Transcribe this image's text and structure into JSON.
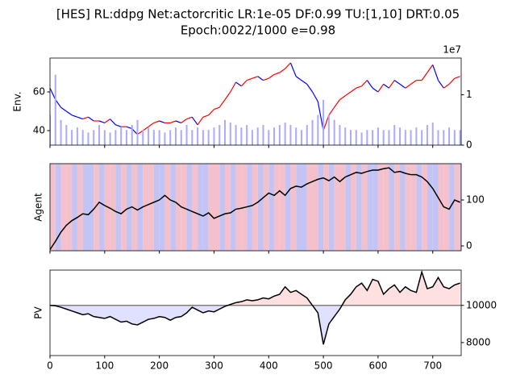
{
  "title": [
    "[HES] RL:ddpg Net:actorcritic LR:1e-05 DF:0.99 TU:[1,10] DRT:0.05",
    "Epoch:0022/1000 e=0.98"
  ],
  "chart_data": [
    {
      "type": "line",
      "ylabel": "Env.",
      "ytick_side": "left",
      "show_xticklabels": false,
      "x": [
        0,
        10,
        20,
        30,
        40,
        50,
        60,
        70,
        80,
        90,
        100,
        110,
        120,
        130,
        140,
        150,
        160,
        170,
        180,
        190,
        200,
        210,
        220,
        230,
        240,
        250,
        260,
        270,
        280,
        290,
        300,
        310,
        320,
        330,
        340,
        350,
        360,
        370,
        380,
        390,
        400,
        410,
        420,
        430,
        440,
        450,
        460,
        470,
        480,
        490,
        500,
        510,
        520,
        530,
        540,
        550,
        560,
        570,
        580,
        590,
        600,
        610,
        620,
        630,
        640,
        650,
        660,
        670,
        680,
        690,
        700,
        710,
        720,
        730,
        740,
        750
      ],
      "xlim": [
        0,
        752
      ],
      "xticks": [
        0,
        100,
        200,
        300,
        400,
        500,
        600,
        700
      ],
      "ylim": [
        32.5,
        77.5
      ],
      "yticks": [
        40,
        60
      ],
      "y2lim": [
        0,
        1.73
      ],
      "y2ticks": [
        0,
        1
      ],
      "y2_offset_label": "1e7",
      "series": [
        {
          "up_color": "#ff0000",
          "down_color": "#0000ff",
          "values": [
            62,
            56,
            52,
            50,
            48,
            47,
            46,
            47,
            45,
            45,
            44,
            46,
            43,
            42,
            42,
            41,
            38,
            40,
            42,
            44,
            45,
            44,
            44,
            45,
            44,
            46,
            47,
            43,
            47,
            48,
            51,
            52,
            56,
            60,
            65,
            63,
            66,
            67,
            68,
            66,
            67,
            69,
            70,
            72,
            75,
            68,
            66,
            64,
            60,
            55,
            40,
            48,
            52,
            56,
            58,
            60,
            62,
            63,
            66,
            62,
            60,
            64,
            62,
            66,
            64,
            62,
            64,
            66,
            66,
            70,
            74,
            66,
            62,
            64,
            67,
            68
          ]
        },
        {
          "type": "bar",
          "axis": "y2",
          "color": "#aaaaff",
          "values": [
            0.6,
            1.4,
            0.5,
            0.4,
            0.3,
            0.35,
            0.3,
            0.25,
            0.3,
            0.4,
            0.3,
            0.25,
            0.3,
            0.35,
            0.3,
            0.4,
            0.5,
            0.3,
            0.35,
            0.3,
            0.3,
            0.25,
            0.3,
            0.35,
            0.3,
            0.4,
            0.3,
            0.35,
            0.3,
            0.3,
            0.35,
            0.4,
            0.5,
            0.45,
            0.4,
            0.35,
            0.4,
            0.3,
            0.35,
            0.4,
            0.3,
            0.35,
            0.4,
            0.45,
            0.4,
            0.35,
            0.3,
            0.4,
            0.5,
            0.6,
            0.9,
            0.6,
            0.5,
            0.4,
            0.35,
            0.3,
            0.3,
            0.25,
            0.3,
            0.3,
            0.35,
            0.3,
            0.3,
            0.4,
            0.35,
            0.3,
            0.3,
            0.35,
            0.3,
            0.4,
            0.45,
            0.3,
            0.3,
            0.35,
            0.3,
            0.3
          ]
        }
      ]
    },
    {
      "type": "line",
      "ylabel": "Agent",
      "ytick_side": "right",
      "show_xticklabels": false,
      "x": [
        0,
        10,
        20,
        30,
        40,
        50,
        60,
        70,
        80,
        90,
        100,
        110,
        120,
        130,
        140,
        150,
        160,
        170,
        180,
        190,
        200,
        210,
        220,
        230,
        240,
        250,
        260,
        270,
        280,
        290,
        300,
        310,
        320,
        330,
        340,
        350,
        360,
        370,
        380,
        390,
        400,
        410,
        420,
        430,
        440,
        450,
        460,
        470,
        480,
        490,
        500,
        510,
        520,
        530,
        540,
        550,
        560,
        570,
        580,
        590,
        600,
        610,
        620,
        630,
        640,
        650,
        660,
        670,
        680,
        690,
        700,
        710,
        720,
        730,
        740,
        750
      ],
      "xlim": [
        0,
        752
      ],
      "xticks": [
        0,
        100,
        200,
        300,
        400,
        500,
        600,
        700
      ],
      "ylim": [
        -10.5,
        179
      ],
      "yticks": [
        0,
        100
      ],
      "action_colors": [
        "#c4c4f4",
        "#f4c0cc"
      ],
      "actions": [
        1,
        0,
        1,
        1,
        0,
        1,
        0,
        0,
        1,
        0,
        1,
        1,
        0,
        1,
        0,
        1,
        0,
        1,
        1,
        0,
        0,
        1,
        0,
        1,
        1,
        0,
        1,
        0,
        0,
        1,
        1,
        0,
        1,
        0,
        1,
        1,
        0,
        1,
        0,
        1,
        0,
        1,
        1,
        0,
        1,
        0,
        0,
        1,
        1,
        0,
        1,
        0,
        1,
        1,
        0,
        1,
        0,
        1,
        0,
        0,
        1,
        1,
        0,
        1,
        0,
        1,
        1,
        0,
        1,
        0,
        0,
        1,
        1,
        0,
        1,
        0
      ],
      "series": [
        {
          "color": "#000000",
          "values": [
            -8,
            10,
            30,
            45,
            55,
            62,
            70,
            68,
            80,
            95,
            88,
            82,
            75,
            70,
            80,
            85,
            78,
            85,
            90,
            95,
            100,
            110,
            100,
            95,
            85,
            80,
            75,
            70,
            65,
            72,
            60,
            65,
            70,
            72,
            80,
            82,
            85,
            88,
            95,
            105,
            115,
            110,
            120,
            110,
            125,
            130,
            128,
            135,
            140,
            145,
            148,
            142,
            150,
            140,
            150,
            155,
            160,
            158,
            162,
            165,
            165,
            168,
            170,
            160,
            162,
            158,
            155,
            155,
            150,
            140,
            125,
            105,
            85,
            80,
            100,
            95
          ]
        }
      ]
    },
    {
      "type": "line",
      "ylabel": "PV",
      "ytick_side": "right",
      "show_xticklabels": true,
      "x": [
        0,
        10,
        20,
        30,
        40,
        50,
        60,
        70,
        80,
        90,
        100,
        110,
        120,
        130,
        140,
        150,
        160,
        170,
        180,
        190,
        200,
        210,
        220,
        230,
        240,
        250,
        260,
        270,
        280,
        290,
        300,
        310,
        320,
        330,
        340,
        350,
        360,
        370,
        380,
        390,
        400,
        410,
        420,
        430,
        440,
        450,
        460,
        470,
        480,
        490,
        500,
        510,
        520,
        530,
        540,
        550,
        560,
        570,
        580,
        590,
        600,
        610,
        620,
        630,
        640,
        650,
        660,
        670,
        680,
        690,
        700,
        710,
        720,
        730,
        740,
        750
      ],
      "xlim": [
        0,
        752
      ],
      "xticks": [
        0,
        100,
        200,
        300,
        400,
        500,
        600,
        700
      ],
      "ylim": [
        7300,
        11900
      ],
      "yticks": [
        8000,
        10000
      ],
      "baseline": 10000,
      "baseline_color": "#808080",
      "fill_above": "#ffe0e0",
      "fill_below": "#e0e0ff",
      "series": [
        {
          "color": "#000000",
          "values": [
            10000,
            9980,
            9900,
            9800,
            9700,
            9600,
            9500,
            9550,
            9400,
            9350,
            9300,
            9400,
            9250,
            9100,
            9150,
            9000,
            8950,
            9100,
            9250,
            9300,
            9400,
            9350,
            9200,
            9350,
            9400,
            9600,
            9900,
            9750,
            9600,
            9700,
            9650,
            9800,
            9950,
            10050,
            10150,
            10200,
            10300,
            10250,
            10300,
            10400,
            10350,
            10500,
            10600,
            11000,
            10700,
            10800,
            10600,
            10400,
            10000,
            9600,
            7900,
            9000,
            9400,
            9800,
            10300,
            10600,
            11000,
            11200,
            10800,
            11400,
            11300,
            10600,
            10900,
            11100,
            10700,
            11000,
            10800,
            10700,
            11800,
            10900,
            11000,
            11500,
            11000,
            10900,
            11100,
            11200
          ]
        }
      ]
    }
  ]
}
